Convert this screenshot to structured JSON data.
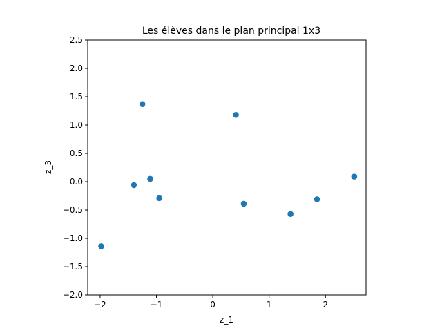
{
  "chart_data": {
    "type": "scatter",
    "title": "Les élèves dans le plan principal 1x3",
    "xlabel": "z_1",
    "ylabel": "z_3",
    "xlim": [
      -2.22,
      2.72
    ],
    "ylim": [
      -2.0,
      2.5
    ],
    "xticks": [
      -2,
      -1,
      0,
      1,
      2
    ],
    "xtick_labels": [
      "−2",
      "−1",
      "0",
      "1",
      "2"
    ],
    "yticks": [
      -2.0,
      -1.5,
      -1.0,
      -0.5,
      0.0,
      0.5,
      1.0,
      1.5,
      2.0,
      2.5
    ],
    "ytick_labels": [
      "−2.0",
      "−1.5",
      "−1.0",
      "−0.5",
      "0.0",
      "0.5",
      "1.0",
      "1.5",
      "2.0",
      "2.5"
    ],
    "grid": false,
    "legend": "none",
    "marker_color": "#1f77b4",
    "points": [
      {
        "x": -1.98,
        "y": -1.14
      },
      {
        "x": -1.4,
        "y": -0.06
      },
      {
        "x": -1.25,
        "y": 1.37
      },
      {
        "x": -1.11,
        "y": 0.05
      },
      {
        "x": -0.95,
        "y": -0.29
      },
      {
        "x": 0.41,
        "y": 1.18
      },
      {
        "x": 0.55,
        "y": -0.39
      },
      {
        "x": 1.38,
        "y": -0.57
      },
      {
        "x": 1.85,
        "y": -0.31
      },
      {
        "x": 2.51,
        "y": 0.09
      }
    ]
  }
}
